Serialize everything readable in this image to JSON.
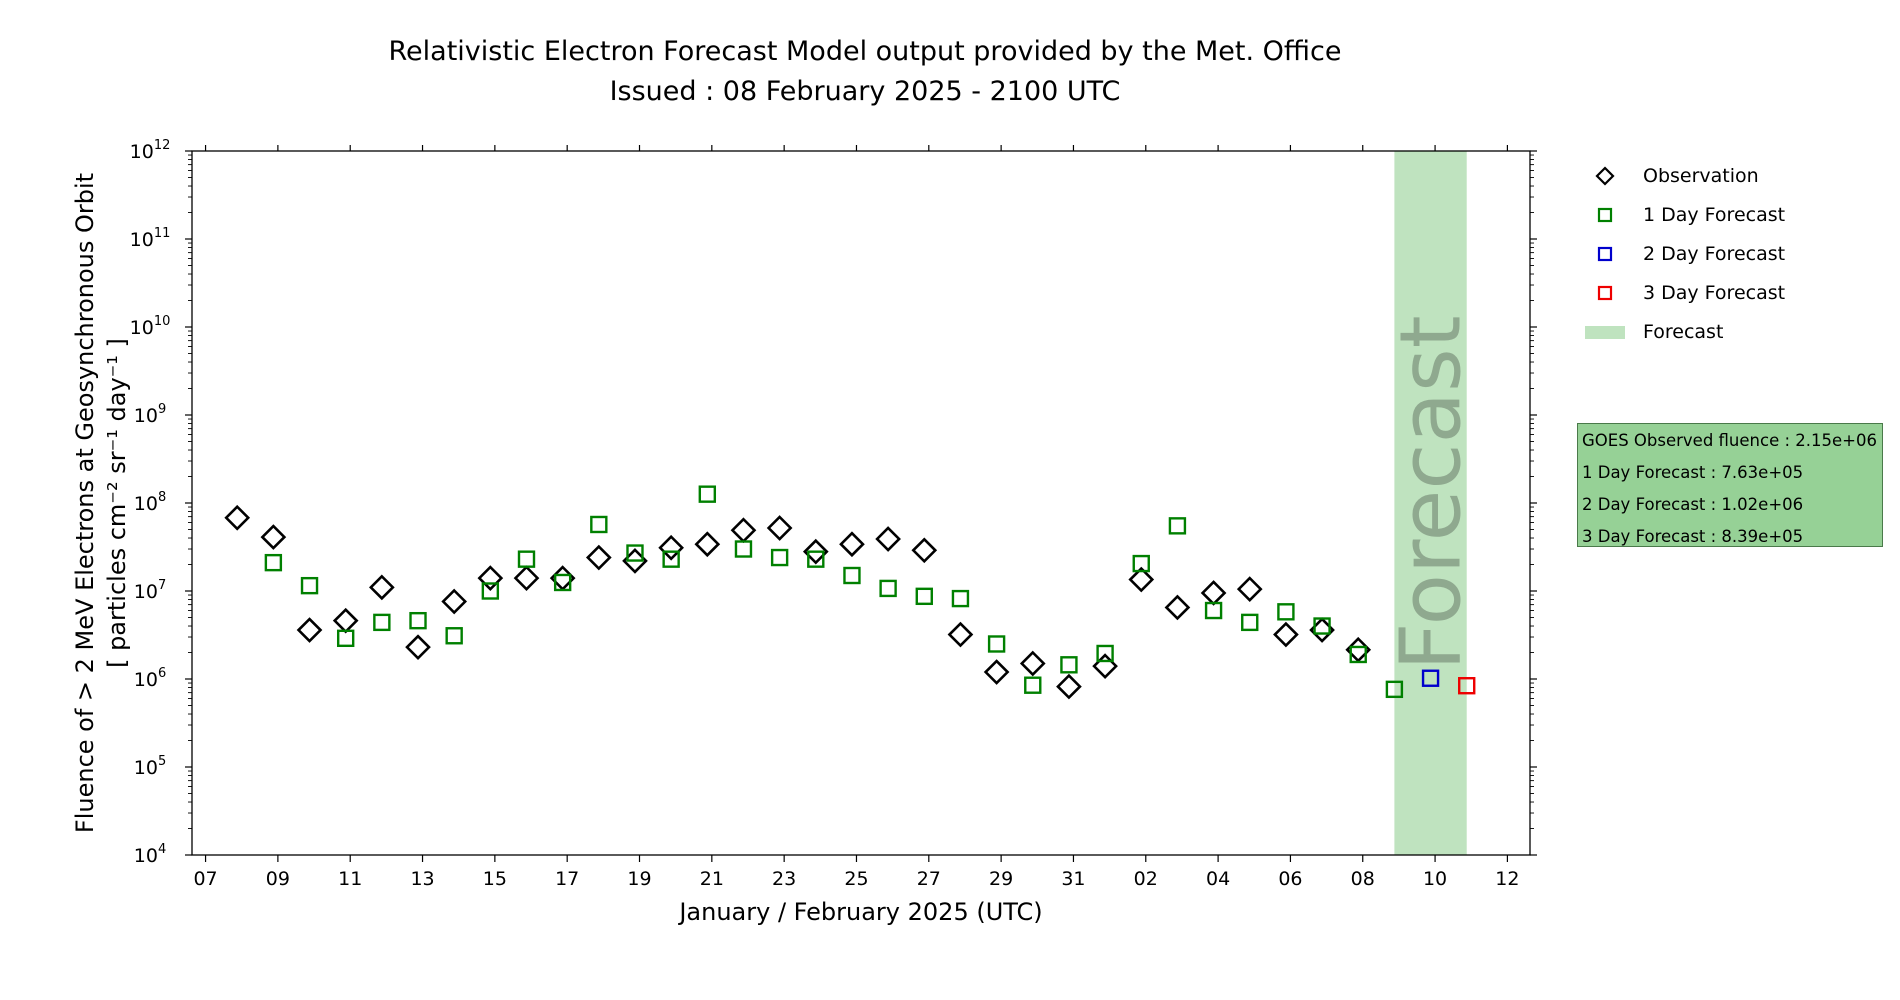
{
  "header": {
    "title_line1": "Relativistic Electron Forecast Model output provided by the Met. Office",
    "title_line2": "Issued : 08 February 2025 - 2100 UTC"
  },
  "legend": {
    "items": [
      {
        "label": "Observation",
        "marker": "diamond",
        "color": "#000000"
      },
      {
        "label": "1 Day Forecast",
        "marker": "square",
        "color": "#008000"
      },
      {
        "label": "2 Day Forecast",
        "marker": "square",
        "color": "#0000cc"
      },
      {
        "label": "3 Day Forecast",
        "marker": "square",
        "color": "#ee0000"
      },
      {
        "label": "Forecast",
        "marker": "band",
        "color": "#bfe3bf"
      }
    ]
  },
  "info_box": {
    "lines": [
      "GOES Observed fluence : 2.15e+06",
      "1 Day Forecast : 7.63e+05",
      "2 Day Forecast : 1.02e+06",
      "3 Day Forecast : 8.39e+05"
    ],
    "background": "#96d196"
  },
  "chart_data": {
    "type": "scatter",
    "x_scale": "time (day)",
    "y_scale": "log",
    "xlabel": "January / February 2025 (UTC)",
    "ylabel_line1": "Fluence of > 2 MeV Electrons at Geosynchronous Orbit",
    "ylabel_line2": "[ particles cm⁻² sr⁻¹ day⁻¹ ]",
    "xlim": [
      "2025-01-06T15:00",
      "2025-02-12T15:00"
    ],
    "ylim": [
      10000.0,
      1000000000000.0
    ],
    "x_tick_labels": [
      "07",
      "09",
      "11",
      "13",
      "15",
      "17",
      "19",
      "21",
      "23",
      "25",
      "27",
      "29",
      "31",
      "02",
      "04",
      "06",
      "08",
      "10",
      "12"
    ],
    "x_tick_dates": [
      "2025-01-07",
      "2025-01-09",
      "2025-01-11",
      "2025-01-13",
      "2025-01-15",
      "2025-01-17",
      "2025-01-19",
      "2025-01-21",
      "2025-01-23",
      "2025-01-25",
      "2025-01-27",
      "2025-01-29",
      "2025-01-31",
      "2025-02-02",
      "2025-02-04",
      "2025-02-06",
      "2025-02-08",
      "2025-02-10",
      "2025-02-12"
    ],
    "y_ticks": [
      {
        "base": "10",
        "exp": "4"
      },
      {
        "base": "10",
        "exp": "5"
      },
      {
        "base": "10",
        "exp": "6"
      },
      {
        "base": "10",
        "exp": "7"
      },
      {
        "base": "10",
        "exp": "8"
      },
      {
        "base": "10",
        "exp": "9"
      },
      {
        "base": "10",
        "exp": "10"
      },
      {
        "base": "10",
        "exp": "11"
      },
      {
        "base": "10",
        "exp": "12"
      }
    ],
    "forecast_band": {
      "label": "Forecast",
      "start": "2025-02-08T21:00",
      "end": "2025-02-10T21:00",
      "color": "#bfe3bf",
      "text_color": "#8fa98f"
    },
    "series": [
      {
        "name": "Observation",
        "marker": "diamond",
        "color": "#000000",
        "points": [
          {
            "x": "2025-01-07T21:00",
            "y": 68000000.0
          },
          {
            "x": "2025-01-08T21:00",
            "y": 41000000.0
          },
          {
            "x": "2025-01-09T21:00",
            "y": 3600000.0
          },
          {
            "x": "2025-01-10T21:00",
            "y": 4600000.0
          },
          {
            "x": "2025-01-11T21:00",
            "y": 11000000.0
          },
          {
            "x": "2025-01-12T21:00",
            "y": 2300000.0
          },
          {
            "x": "2025-01-13T21:00",
            "y": 7600000.0
          },
          {
            "x": "2025-01-14T21:00",
            "y": 14000000.0
          },
          {
            "x": "2025-01-15T21:00",
            "y": 14000000.0
          },
          {
            "x": "2025-01-16T21:00",
            "y": 14000000.0
          },
          {
            "x": "2025-01-17T21:00",
            "y": 24000000.0
          },
          {
            "x": "2025-01-18T21:00",
            "y": 22000000.0
          },
          {
            "x": "2025-01-19T21:00",
            "y": 31000000.0
          },
          {
            "x": "2025-01-20T21:00",
            "y": 34000000.0
          },
          {
            "x": "2025-01-21T21:00",
            "y": 49000000.0
          },
          {
            "x": "2025-01-22T21:00",
            "y": 52000000.0
          },
          {
            "x": "2025-01-23T21:00",
            "y": 28000000.0
          },
          {
            "x": "2025-01-24T21:00",
            "y": 34000000.0
          },
          {
            "x": "2025-01-25T21:00",
            "y": 39000000.0
          },
          {
            "x": "2025-01-26T21:00",
            "y": 29000000.0
          },
          {
            "x": "2025-01-27T21:00",
            "y": 3200000.0
          },
          {
            "x": "2025-01-28T21:00",
            "y": 1200000.0
          },
          {
            "x": "2025-01-29T21:00",
            "y": 1500000.0
          },
          {
            "x": "2025-01-30T21:00",
            "y": 820000.0
          },
          {
            "x": "2025-01-31T21:00",
            "y": 1400000.0
          },
          {
            "x": "2025-02-01T21:00",
            "y": 13500000.0
          },
          {
            "x": "2025-02-02T21:00",
            "y": 6500000.0
          },
          {
            "x": "2025-02-03T21:00",
            "y": 9500000.0
          },
          {
            "x": "2025-02-04T21:00",
            "y": 10500000.0
          },
          {
            "x": "2025-02-05T21:00",
            "y": 3200000.0
          },
          {
            "x": "2025-02-06T21:00",
            "y": 3600000.0
          },
          {
            "x": "2025-02-07T21:00",
            "y": 2150000.0
          }
        ]
      },
      {
        "name": "1 Day Forecast",
        "marker": "square",
        "color": "#008000",
        "points": [
          {
            "x": "2025-01-08T21:00",
            "y": 21000000.0
          },
          {
            "x": "2025-01-09T21:00",
            "y": 11500000.0
          },
          {
            "x": "2025-01-10T21:00",
            "y": 2900000.0
          },
          {
            "x": "2025-01-11T21:00",
            "y": 4400000.0
          },
          {
            "x": "2025-01-12T21:00",
            "y": 4600000.0
          },
          {
            "x": "2025-01-13T21:00",
            "y": 3100000.0
          },
          {
            "x": "2025-01-14T21:00",
            "y": 10000000.0
          },
          {
            "x": "2025-01-15T21:00",
            "y": 23000000.0
          },
          {
            "x": "2025-01-16T21:00",
            "y": 12500000.0
          },
          {
            "x": "2025-01-17T21:00",
            "y": 57000000.0
          },
          {
            "x": "2025-01-18T21:00",
            "y": 27000000.0
          },
          {
            "x": "2025-01-19T21:00",
            "y": 23000000.0
          },
          {
            "x": "2025-01-20T21:00",
            "y": 126000000.0
          },
          {
            "x": "2025-01-21T21:00",
            "y": 30000000.0
          },
          {
            "x": "2025-01-22T21:00",
            "y": 24000000.0
          },
          {
            "x": "2025-01-23T21:00",
            "y": 23000000.0
          },
          {
            "x": "2025-01-24T21:00",
            "y": 15000000.0
          },
          {
            "x": "2025-01-25T21:00",
            "y": 10700000.0
          },
          {
            "x": "2025-01-26T21:00",
            "y": 8700000.0
          },
          {
            "x": "2025-01-27T21:00",
            "y": 8200000.0
          },
          {
            "x": "2025-01-28T21:00",
            "y": 2500000.0
          },
          {
            "x": "2025-01-29T21:00",
            "y": 850000.0
          },
          {
            "x": "2025-01-30T21:00",
            "y": 1450000.0
          },
          {
            "x": "2025-01-31T21:00",
            "y": 1950000.0
          },
          {
            "x": "2025-02-01T21:00",
            "y": 20500000.0
          },
          {
            "x": "2025-02-02T21:00",
            "y": 55000000.0
          },
          {
            "x": "2025-02-03T21:00",
            "y": 6000000.0
          },
          {
            "x": "2025-02-04T21:00",
            "y": 4400000.0
          },
          {
            "x": "2025-02-05T21:00",
            "y": 5800000.0
          },
          {
            "x": "2025-02-06T21:00",
            "y": 4000000.0
          },
          {
            "x": "2025-02-07T21:00",
            "y": 1900000.0
          },
          {
            "x": "2025-02-08T21:00",
            "y": 763000.0
          }
        ]
      },
      {
        "name": "2 Day Forecast",
        "marker": "square",
        "color": "#0000cc",
        "points": [
          {
            "x": "2025-02-09T21:00",
            "y": 1020000.0
          }
        ]
      },
      {
        "name": "3 Day Forecast",
        "marker": "square",
        "color": "#ee0000",
        "points": [
          {
            "x": "2025-02-10T21:00",
            "y": 839000.0
          }
        ]
      }
    ]
  }
}
